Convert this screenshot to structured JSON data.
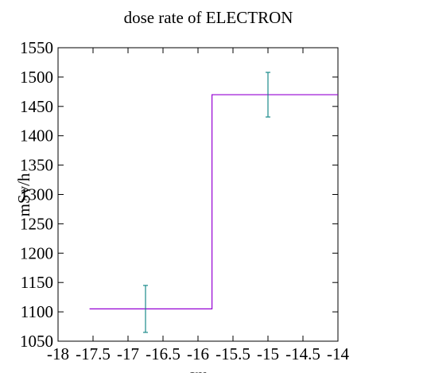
{
  "chart_data": {
    "type": "line",
    "title": "dose rate of ELECTRON",
    "xlabel": "cm",
    "ylabel": "mSv/h",
    "xlim": [
      -18,
      -14
    ],
    "ylim": [
      1050,
      1550
    ],
    "x_ticks": [
      -18,
      -17.5,
      -17,
      -16.5,
      -16,
      -15.5,
      -15,
      -14.5,
      -14
    ],
    "x_tick_labels": [
      "-18",
      "-17.5",
      "-17",
      "-16.5",
      "-16",
      "-15.5",
      "-15",
      "-14.5",
      "-14"
    ],
    "y_ticks": [
      1050,
      1100,
      1150,
      1200,
      1250,
      1300,
      1350,
      1400,
      1450,
      1500,
      1550
    ],
    "y_tick_labels": [
      "1050",
      "1100",
      "1150",
      "1200",
      "1250",
      "1300",
      "1350",
      "1400",
      "1450",
      "1500",
      "1550"
    ],
    "grid": false,
    "step_series": {
      "color": "#9400d3",
      "segments": [
        {
          "x0": -17.55,
          "x1": -15.8,
          "y": 1105
        },
        {
          "x0": -15.8,
          "x1": -14.0,
          "y": 1470
        }
      ]
    },
    "error_bars": {
      "color": "#1a8a8a",
      "points": [
        {
          "x": -16.75,
          "y": 1105,
          "low": 1065,
          "high": 1145
        },
        {
          "x": -15.0,
          "y": 1470,
          "low": 1432,
          "high": 1508
        }
      ]
    }
  }
}
